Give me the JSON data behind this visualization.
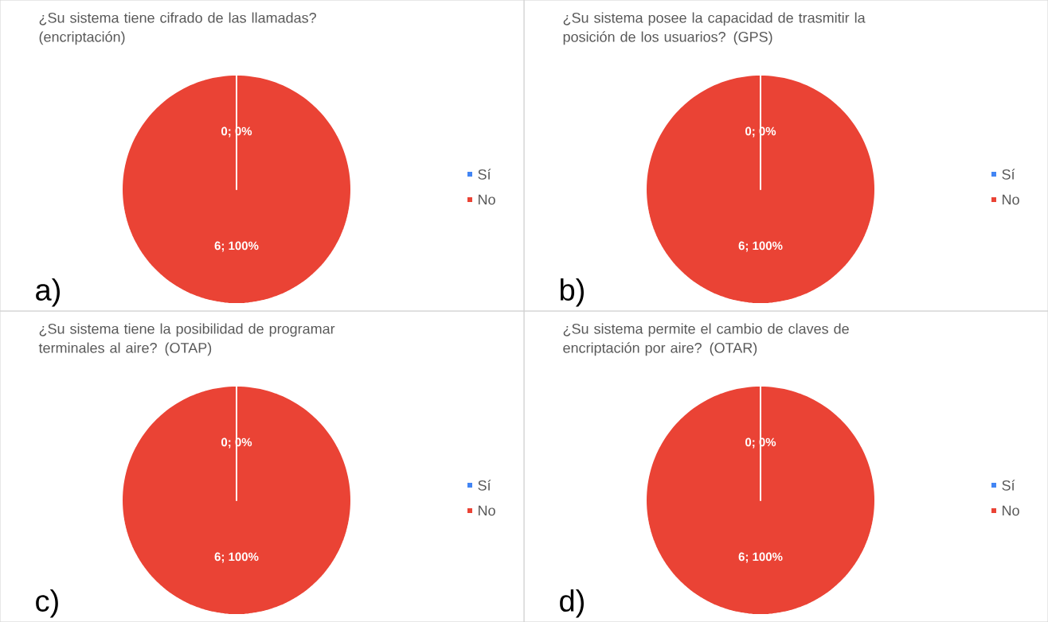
{
  "chart_data": [
    {
      "type": "pie",
      "title": "¿Su sistema tiene cifrado de las llamadas? (encriptación)",
      "categories": [
        "Sí",
        "No"
      ],
      "values": [
        0,
        6
      ],
      "colors": [
        "#4285f4",
        "#ea4335"
      ],
      "value_labels": [
        "0; 0%",
        "6; 100%"
      ],
      "legend": "right",
      "annotations": [
        "a)"
      ]
    },
    {
      "type": "pie",
      "title": "¿Su sistema posee la capacidad de trasmitir la posición de los usuarios? (GPS)",
      "categories": [
        "Sí",
        "No"
      ],
      "values": [
        0,
        6
      ],
      "colors": [
        "#4285f4",
        "#ea4335"
      ],
      "value_labels": [
        "0; 0%",
        "6; 100%"
      ],
      "legend": "right",
      "annotations": [
        "b)"
      ]
    },
    {
      "type": "pie",
      "title": "¿Su sistema tiene la posibilidad de programar terminales al aire? (OTAP)",
      "categories": [
        "Sí",
        "No"
      ],
      "values": [
        0,
        6
      ],
      "colors": [
        "#4285f4",
        "#ea4335"
      ],
      "value_labels": [
        "0; 0%",
        "6; 100%"
      ],
      "legend": "right",
      "annotations": [
        "c)"
      ]
    },
    {
      "type": "pie",
      "title": "¿Su sistema permite el cambio de claves de encriptación por aire? (OTAR)",
      "categories": [
        "Sí",
        "No"
      ],
      "values": [
        0,
        6
      ],
      "colors": [
        "#4285f4",
        "#ea4335"
      ],
      "value_labels": [
        "0; 0%",
        "6; 100%"
      ],
      "legend": "right",
      "annotations": [
        "d)"
      ]
    }
  ]
}
